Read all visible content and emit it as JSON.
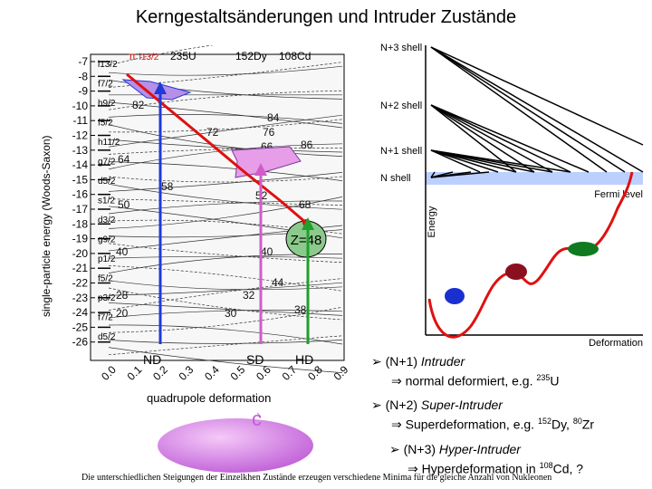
{
  "title": "Kerngestaltsänderungen und Intruder Zustände",
  "left_figure": {
    "ylabel": "single-particle energy (Woods-Saxon)",
    "xlabel": "quadrupole deformation",
    "x_ticks": [
      "0.0",
      "0.1",
      "0.2",
      "0.3",
      "0.4",
      "0.5",
      "0.6",
      "0.7",
      "0.8",
      "0.9"
    ],
    "y_ticks": [
      "-7",
      "-8",
      "-9",
      "-10",
      "-11",
      "-12",
      "-13",
      "-14",
      "-15",
      "-16",
      "-17",
      "-18",
      "-19",
      "-20",
      "-21",
      "-22",
      "-23",
      "-24",
      "-25",
      "-26"
    ],
    "orbital_labels": [
      "i13/2",
      "f7/2",
      "h9/2",
      "f5/2",
      "h11/2",
      "g7/2",
      "d5/2",
      "s1/2",
      "d3/2",
      "g9/2",
      "p1/2",
      "f5/2",
      "p3/2",
      "f7/2",
      "d5/2"
    ],
    "magic_labels": [
      "82",
      "64",
      "72",
      "50",
      "40",
      "28",
      "20",
      "58",
      "76",
      "84",
      "86",
      "62",
      "66",
      "52",
      "68",
      "40",
      "32",
      "30",
      "44",
      "38"
    ],
    "nuclei": {
      "u235": "235U",
      "dy152": "152Dy",
      "cd108": "108Cd",
      "pi_prefix": "π",
      "i_label": "i13/2"
    },
    "z_label": "Z=48",
    "markers": {
      "nd": "ND",
      "sd": "SD",
      "hd": "HD"
    },
    "colors": {
      "blue": "#1f3ad8",
      "pink": "#d25bc9",
      "green": "#1ea02a",
      "red": "#e01010",
      "purple_fill": "#b88fe6",
      "pink_fill": "#e89de8",
      "green_blob": "#8cc98c"
    }
  },
  "right_figure": {
    "shells": [
      "N+3 shell",
      "N+2 shell",
      "N+1 shell",
      "N shell"
    ],
    "fermi": "Fermi level",
    "ylabel": "Energy",
    "xlabel": "Deformation",
    "colors": {
      "fermi": "#bcd0ff",
      "red_curve": "#e01010",
      "blue": "#1a2fd0",
      "maroon": "#8a1020",
      "green": "#0f7a20"
    }
  },
  "ellipsoid": {
    "label": "c",
    "color": "#d070e0"
  },
  "bullets": [
    {
      "line1_prefix": "(N+1)",
      "line1_italic": "Intruder",
      "line2_prefix": "normal deformiert, e.g. ",
      "line2_iso": "235",
      "line2_el": "U"
    },
    {
      "line1_prefix": "(N+2)",
      "line1_italic": "Super-Intruder",
      "line2_prefix": "Superdeformation, e.g. ",
      "line2_iso": "152",
      "line2_el": "Dy, ",
      "line2_iso2": "80",
      "line2_el2": "Zr"
    },
    {
      "line1_prefix": "(N+3)",
      "line1_italic": "Hyper-Intruder",
      "line2_prefix": "Hyperdeformation in ",
      "line2_iso": "108",
      "line2_el": "Cd, ?"
    }
  ],
  "footer": "Die unterschiedlichen Steigungen der Einzelkhen Zustände erzeugen verschiedene Minima für die gleiche Anzahl von Nukleonen"
}
